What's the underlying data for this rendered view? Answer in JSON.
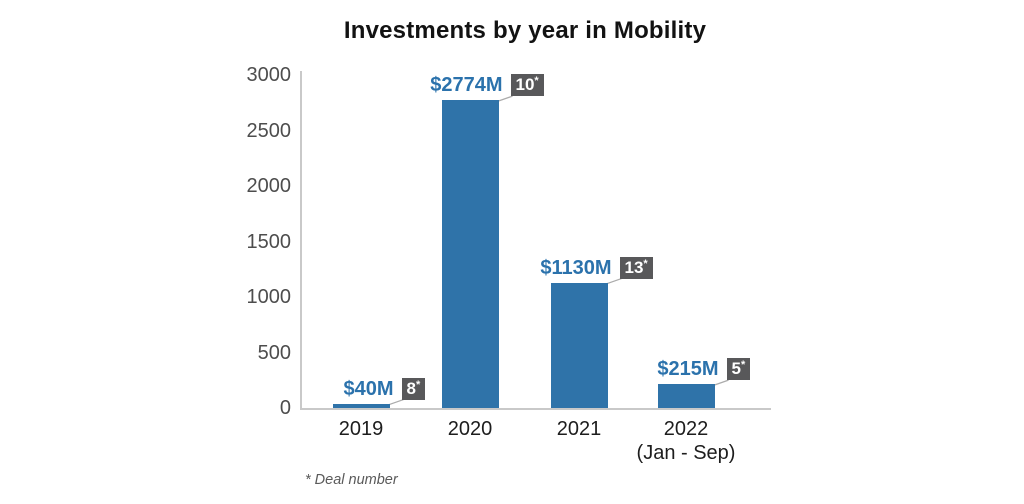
{
  "chart_data": {
    "type": "bar",
    "title": "Investments by year in Mobility",
    "categories": [
      "2019",
      "2020",
      "2021",
      "2022"
    ],
    "category_sublabels": [
      "",
      "",
      "",
      "(Jan - Sep)"
    ],
    "values": [
      40,
      2774,
      1130,
      215
    ],
    "value_labels": [
      "$40M",
      "$2774M",
      "$1130M",
      "$215M"
    ],
    "deal_counts": [
      "8",
      "10",
      "13",
      "5"
    ],
    "deal_count_suffix": "*",
    "footnote": "* Deal number",
    "xlabel": "",
    "ylabel": "",
    "ylim": [
      0,
      3000
    ],
    "yticks": [
      0,
      500,
      1000,
      1500,
      2000,
      2500,
      3000
    ],
    "grid": false,
    "legend": false,
    "colors": {
      "bar": "#2F73A9",
      "value_label": "#2B72AC",
      "badge_bg": "#58585A",
      "badge_text": "#FFFFFF",
      "axis": "#C9C9C9",
      "leader_line": "#ABABAB",
      "ytick_label": "#4D4D4D",
      "xtick_label": "#1D1D1D",
      "title": "#121212",
      "footnote": "#5A5A5A"
    }
  }
}
